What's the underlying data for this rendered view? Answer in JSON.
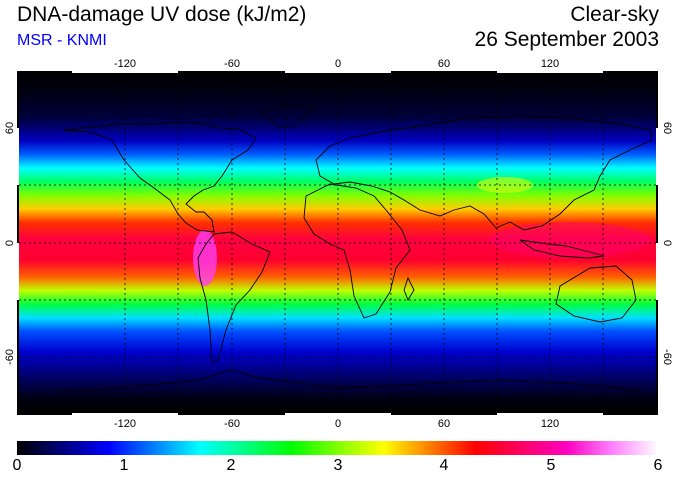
{
  "header": {
    "title": "DNA-damage UV dose (kJ/m2)",
    "source": "MSR - KNMI",
    "condition": "Clear-sky",
    "date": "26 September 2003"
  },
  "colors": {
    "source_text": "#0000ff",
    "grid": "#000000",
    "coast": "#000000"
  },
  "map": {
    "projection": "equirectangular",
    "lon_range": [
      -180,
      180
    ],
    "lat_range": [
      -90,
      90
    ],
    "lon_ticks": [
      "-120",
      "-60",
      "0",
      "60",
      "120"
    ],
    "lat_ticks": [
      "60",
      "0",
      "-60"
    ],
    "gridlines_lat": [
      -60,
      -30,
      0,
      30,
      60
    ],
    "gridlines_lon": [
      -120,
      -90,
      -60,
      -30,
      0,
      30,
      60,
      90,
      120,
      150
    ]
  },
  "colorbar": {
    "min": 0,
    "max": 6,
    "labels": [
      "0",
      "1",
      "2",
      "3",
      "4",
      "5",
      "6"
    ],
    "stops": [
      "#000000",
      "#00007f",
      "#0000ff",
      "#0080ff",
      "#00ffff",
      "#00ff80",
      "#00ff00",
      "#80ff00",
      "#ffff00",
      "#ff8000",
      "#ff0000",
      "#ff0060",
      "#ff00c0",
      "#ff80ff",
      "#ffffff"
    ]
  }
}
